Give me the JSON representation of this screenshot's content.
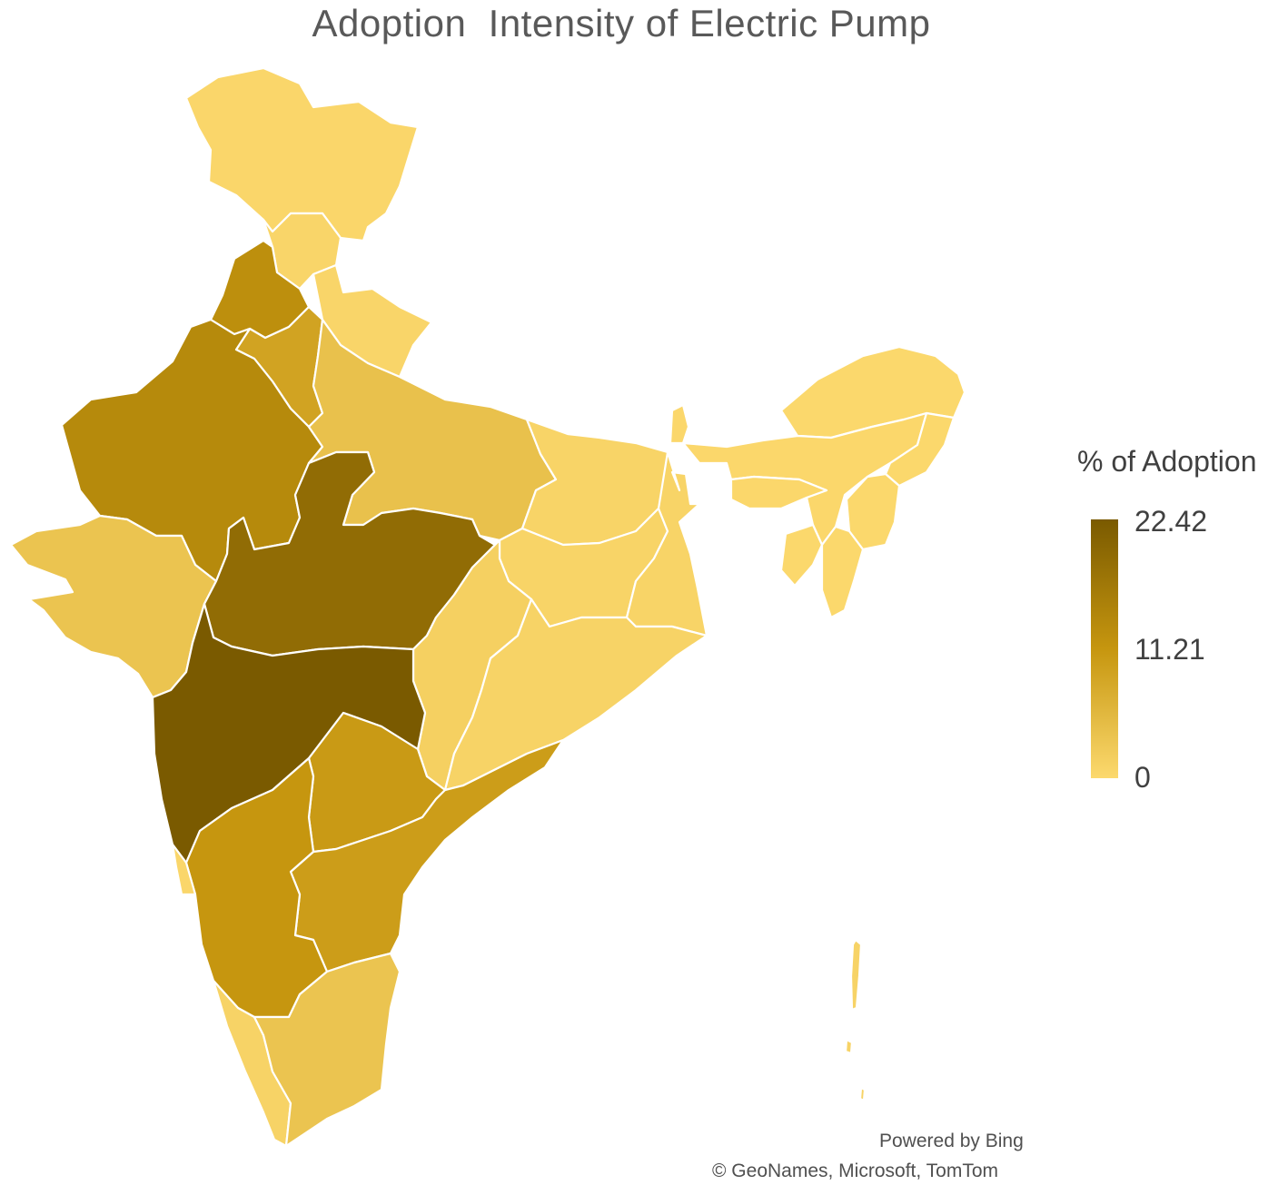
{
  "title": "Adoption  Intensity of Electric Pump",
  "legend": {
    "title": "% of Adoption",
    "max_label": "22.42",
    "mid_label": "11.21",
    "min_label": "0",
    "min_value": 0,
    "max_value": 22.42,
    "colors": {
      "low": "#fcd96e",
      "mid": "#c6960f",
      "high": "#7a5a00"
    }
  },
  "credits": {
    "powered_by": "Powered by Bing",
    "sources": "© GeoNames, Microsoft, TomTom"
  },
  "regions": [
    {
      "name": "Jammu and Kashmir",
      "value": 0.5
    },
    {
      "name": "Himachal Pradesh",
      "value": 0.6
    },
    {
      "name": "Punjab",
      "value": 12.5
    },
    {
      "name": "Haryana",
      "value": 9.0
    },
    {
      "name": "Uttarakhand",
      "value": 0.6
    },
    {
      "name": "Rajasthan",
      "value": 13.5
    },
    {
      "name": "Uttar Pradesh",
      "value": 4.0
    },
    {
      "name": "Gujarat",
      "value": 3.5
    },
    {
      "name": "Madhya Pradesh",
      "value": 19.0
    },
    {
      "name": "Bihar",
      "value": 0.8
    },
    {
      "name": "Jharkhand",
      "value": 0.8
    },
    {
      "name": "West Bengal",
      "value": 0.8
    },
    {
      "name": "Chhattisgarh",
      "value": 1.5
    },
    {
      "name": "Odisha",
      "value": 1.0
    },
    {
      "name": "Maharashtra",
      "value": 22.42
    },
    {
      "name": "Telangana",
      "value": 10.5
    },
    {
      "name": "Andhra Pradesh",
      "value": 10.0
    },
    {
      "name": "Karnataka",
      "value": 11.21
    },
    {
      "name": "Goa",
      "value": 0.5
    },
    {
      "name": "Kerala",
      "value": 1.0
    },
    {
      "name": "Tamil Nadu",
      "value": 3.5
    },
    {
      "name": "Sikkim",
      "value": 0.3
    },
    {
      "name": "Arunachal Pradesh",
      "value": 0.2
    },
    {
      "name": "Assam",
      "value": 0.3
    },
    {
      "name": "Meghalaya",
      "value": 0.3
    },
    {
      "name": "Nagaland",
      "value": 0.2
    },
    {
      "name": "Manipur",
      "value": 0.2
    },
    {
      "name": "Mizoram",
      "value": 0.2
    },
    {
      "name": "Tripura",
      "value": 0.2
    },
    {
      "name": "Andaman and Nicobar Islands",
      "value": 1.0
    }
  ]
}
